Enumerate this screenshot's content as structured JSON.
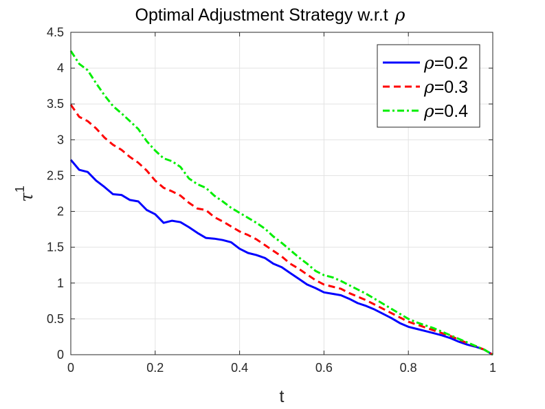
{
  "chart_data": {
    "type": "line",
    "title": "Optimal Adjustment Strategy w.r.t",
    "title_symbol": "ρ",
    "xlabel": "t",
    "ylabel": "τ",
    "ylabel_superscript": "1",
    "xlim": [
      0,
      1
    ],
    "ylim": [
      0,
      4.5
    ],
    "xticks": [
      0,
      0.2,
      0.4,
      0.6,
      0.8,
      1
    ],
    "xtick_labels": [
      "0",
      "0.2",
      "0.4",
      "0.6",
      "0.8",
      "1"
    ],
    "yticks": [
      0,
      0.5,
      1,
      1.5,
      2,
      2.5,
      3,
      3.5,
      4,
      4.5
    ],
    "ytick_labels": [
      "0",
      "0.5",
      "1",
      "1.5",
      "2",
      "2.5",
      "3",
      "3.5",
      "4",
      "4.5"
    ],
    "grid": true,
    "legend_position": "top-right",
    "x": [
      0,
      0.02,
      0.04,
      0.06,
      0.08,
      0.1,
      0.12,
      0.14,
      0.16,
      0.18,
      0.2,
      0.22,
      0.24,
      0.26,
      0.28,
      0.3,
      0.32,
      0.34,
      0.36,
      0.38,
      0.4,
      0.42,
      0.44,
      0.46,
      0.48,
      0.5,
      0.52,
      0.54,
      0.56,
      0.58,
      0.6,
      0.62,
      0.64,
      0.66,
      0.68,
      0.7,
      0.72,
      0.74,
      0.76,
      0.78,
      0.8,
      0.82,
      0.84,
      0.86,
      0.88,
      0.9,
      0.92,
      0.94,
      0.96,
      0.98,
      1.0
    ],
    "series": [
      {
        "name": "ρ=0.2",
        "name_symbol": "ρ",
        "name_value": "=0.2",
        "color": "#0000ff",
        "dash": "solid",
        "values": [
          2.72,
          2.58,
          2.55,
          2.43,
          2.34,
          2.24,
          2.23,
          2.16,
          2.14,
          2.02,
          1.96,
          1.84,
          1.87,
          1.85,
          1.78,
          1.7,
          1.63,
          1.62,
          1.6,
          1.57,
          1.48,
          1.42,
          1.39,
          1.35,
          1.27,
          1.22,
          1.14,
          1.06,
          0.98,
          0.93,
          0.87,
          0.85,
          0.83,
          0.78,
          0.72,
          0.68,
          0.63,
          0.57,
          0.51,
          0.44,
          0.39,
          0.36,
          0.33,
          0.3,
          0.27,
          0.23,
          0.18,
          0.14,
          0.11,
          0.07,
          0.0
        ]
      },
      {
        "name": "ρ=0.3",
        "name_symbol": "ρ",
        "name_value": "=0.3",
        "color": "#ff0000",
        "dash": "dashed",
        "values": [
          3.49,
          3.32,
          3.26,
          3.16,
          3.03,
          2.93,
          2.86,
          2.76,
          2.68,
          2.57,
          2.43,
          2.33,
          2.28,
          2.22,
          2.12,
          2.04,
          2.02,
          1.92,
          1.86,
          1.79,
          1.72,
          1.67,
          1.61,
          1.53,
          1.45,
          1.37,
          1.27,
          1.2,
          1.12,
          1.04,
          0.98,
          0.95,
          0.92,
          0.86,
          0.81,
          0.76,
          0.7,
          0.64,
          0.58,
          0.52,
          0.46,
          0.42,
          0.38,
          0.34,
          0.3,
          0.26,
          0.21,
          0.16,
          0.12,
          0.07,
          0.0
        ]
      },
      {
        "name": "ρ=0.4",
        "name_symbol": "ρ",
        "name_value": "=0.4",
        "color": "#00ee00",
        "dash": "dashdot",
        "values": [
          4.24,
          4.06,
          3.97,
          3.79,
          3.62,
          3.47,
          3.37,
          3.26,
          3.15,
          2.98,
          2.85,
          2.74,
          2.7,
          2.62,
          2.46,
          2.38,
          2.33,
          2.22,
          2.14,
          2.05,
          1.98,
          1.91,
          1.84,
          1.76,
          1.65,
          1.56,
          1.46,
          1.36,
          1.27,
          1.17,
          1.11,
          1.08,
          1.03,
          0.97,
          0.91,
          0.85,
          0.78,
          0.71,
          0.64,
          0.57,
          0.5,
          0.45,
          0.41,
          0.37,
          0.32,
          0.27,
          0.22,
          0.17,
          0.12,
          0.07,
          0.0
        ]
      }
    ]
  }
}
